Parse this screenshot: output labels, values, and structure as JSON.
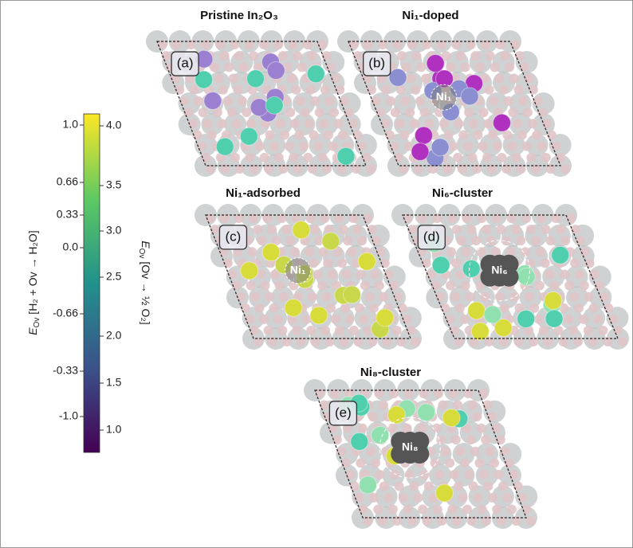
{
  "colorbar": {
    "left_label": {
      "symbol": "E",
      "sub": "Ov",
      "rest": " [H₂ + Ov → H₂O]"
    },
    "right_label": {
      "symbol": "E",
      "sub": "Ov",
      "rest": " [Ov → ½ O₂]"
    },
    "left_ticks": [
      "1.0",
      "0.66",
      "0.33",
      "0.0",
      "-0.66",
      "-0.33",
      "-1.0"
    ],
    "right_ticks": [
      "4.0",
      "3.5",
      "3.0",
      "2.5",
      "2.0",
      "1.5",
      "1.0"
    ]
  },
  "panels": [
    {
      "title": "Pristine In₂O₃",
      "label": "(a)"
    },
    {
      "title": "Ni₁-doped",
      "label": "(b)",
      "site": "Ni₁"
    },
    {
      "title": "Ni₁-adsorbed",
      "label": "(c)",
      "site": "Ni₁"
    },
    {
      "title": "Ni₆-cluster",
      "label": "(d)",
      "site": "Ni₆"
    },
    {
      "title": "Ni₈-cluster",
      "label": "(e)",
      "site": "Ni₈"
    }
  ]
}
